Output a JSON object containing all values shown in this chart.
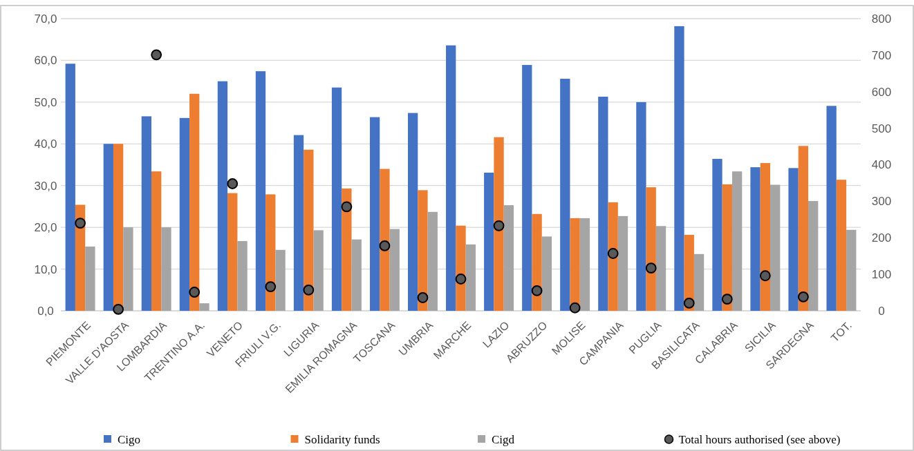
{
  "chart_data": {
    "type": "bar",
    "categories": [
      "PIEMONTE",
      "VALLE D'AOSTA",
      "LOMBARDIA",
      "TRENTINO A.A.",
      "VENETO",
      "FRIULI V.G.",
      "LIGURIA",
      "EMILIA ROMAGNA",
      "TOSCANA",
      "UMBRIA",
      "MARCHE",
      "LAZIO",
      "ABRUZZO",
      "MOLISE",
      "CAMPANIA",
      "PUGLIA",
      "BASILICATA",
      "CALABRIA",
      "SICILIA",
      "SARDEGNA",
      "TOT."
    ],
    "series": [
      {
        "name": "Cigo",
        "color": "#4472c4",
        "values": [
          59.2,
          40.0,
          46.6,
          46.2,
          55.0,
          57.4,
          42.1,
          53.5,
          46.4,
          47.4,
          63.6,
          33.1,
          58.9,
          55.6,
          51.3,
          50.0,
          68.2,
          36.4,
          34.4,
          34.2,
          49.1
        ]
      },
      {
        "name": "Solidarity funds",
        "color": "#ed7d31",
        "values": [
          25.4,
          40.0,
          33.4,
          52.0,
          28.2,
          27.9,
          38.6,
          29.3,
          34.0,
          28.9,
          20.4,
          41.6,
          23.2,
          22.2,
          26.0,
          29.6,
          18.2,
          30.3,
          35.4,
          39.5,
          31.4
        ]
      },
      {
        "name": "Cigd",
        "color": "#a5a5a5",
        "values": [
          15.4,
          20.0,
          20.0,
          1.8,
          16.7,
          14.6,
          19.3,
          17.1,
          19.6,
          23.7,
          15.9,
          25.3,
          17.8,
          22.2,
          22.7,
          20.3,
          13.6,
          33.4,
          30.2,
          26.3,
          19.4
        ]
      },
      {
        "name": "Total hours authorised (see above)",
        "type": "scatter",
        "axis": "y2",
        "color": "#595959",
        "marker": "circle",
        "x": [
          "PIEMONTE",
          "VALLE D'AOSTA",
          "LOMBARDIA",
          "TRENTINO A.A.",
          "VENETO",
          "FRIULI V.G.",
          "LIGURIA",
          "EMILIA ROMAGNA",
          "TOSCANA",
          "UMBRIA",
          "MARCHE",
          "LAZIO",
          "ABRUZZO",
          "MOLISE",
          "CAMPANIA",
          "PUGLIA",
          "BASILICATA",
          "CALABRIA",
          "SICILIA",
          "SARDEGNA",
          "TOT."
        ],
        "values": [
          240,
          4,
          701,
          51,
          348,
          66,
          57,
          285,
          178,
          36,
          87,
          233,
          55,
          8,
          157,
          117,
          21,
          32,
          96,
          38,
          null
        ]
      }
    ],
    "ylim": [
      0,
      70
    ],
    "yticks": [
      {
        "value": 0,
        "label": "0,0"
      },
      {
        "value": 10,
        "label": "10,0"
      },
      {
        "value": 20,
        "label": "20,0"
      },
      {
        "value": 30,
        "label": "30,0"
      },
      {
        "value": 40,
        "label": "40,0"
      },
      {
        "value": 50,
        "label": "50,0"
      },
      {
        "value": 60,
        "label": "60,0"
      },
      {
        "value": 70,
        "label": "70,0"
      }
    ],
    "y2lim": [
      0,
      800
    ],
    "y2ticks": [
      0,
      100,
      200,
      300,
      400,
      500,
      600,
      700,
      800
    ],
    "grid": "y",
    "legend": "bottom"
  }
}
